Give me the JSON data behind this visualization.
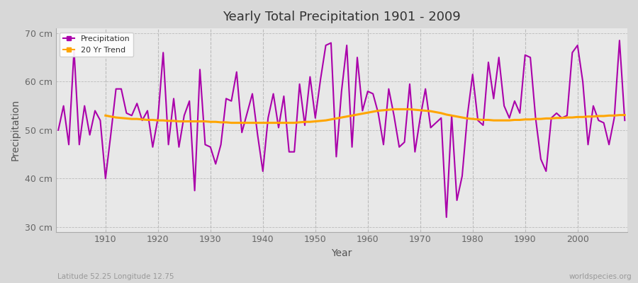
{
  "title": "Yearly Total Precipitation 1901 - 2009",
  "xlabel": "Year",
  "ylabel": "Precipitation",
  "subtitle_left": "Latitude 52.25 Longitude 12.75",
  "subtitle_right": "worldspecies.org",
  "ylim": [
    29,
    71
  ],
  "yticks": [
    30,
    40,
    50,
    60,
    70
  ],
  "ytick_labels": [
    "30 cm",
    "40 cm",
    "50 cm",
    "60 cm",
    "70 cm"
  ],
  "start_year": 1901,
  "end_year": 2009,
  "precip_color": "#AA00AA",
  "trend_color": "#FFA500",
  "figure_bg_color": "#D8D8D8",
  "plot_bg_color": "#E8E8E8",
  "grid_color": "#BBBBBB",
  "precipitation": [
    50.0,
    55.0,
    47.0,
    66.5,
    47.0,
    55.0,
    49.0,
    54.0,
    52.0,
    40.0,
    49.0,
    58.5,
    58.5,
    53.5,
    53.0,
    55.5,
    52.0,
    54.0,
    46.5,
    52.5,
    66.0,
    47.0,
    56.5,
    46.5,
    53.0,
    56.0,
    37.5,
    62.5,
    47.0,
    46.5,
    43.0,
    47.0,
    56.5,
    56.0,
    62.0,
    49.5,
    53.5,
    57.5,
    49.0,
    41.5,
    52.5,
    57.5,
    50.5,
    57.0,
    45.5,
    45.5,
    59.5,
    51.0,
    61.0,
    52.5,
    60.5,
    67.5,
    68.0,
    44.5,
    58.0,
    67.5,
    46.5,
    65.0,
    54.0,
    58.0,
    57.5,
    53.5,
    47.0,
    58.5,
    53.0,
    46.5,
    47.5,
    59.5,
    45.5,
    52.5,
    58.5,
    50.5,
    51.5,
    52.5,
    32.0,
    53.0,
    35.5,
    40.5,
    53.0,
    61.5,
    52.0,
    51.0,
    64.0,
    56.5,
    65.0,
    55.0,
    52.5,
    56.0,
    53.5,
    65.5,
    65.0,
    52.5,
    44.0,
    41.5,
    52.5,
    53.5,
    52.5,
    53.0,
    66.0,
    67.5,
    60.0,
    47.0,
    55.0,
    52.0,
    51.5,
    47.0,
    52.5,
    68.5,
    52.0
  ],
  "trend": [
    null,
    null,
    null,
    null,
    null,
    null,
    null,
    null,
    null,
    53.0,
    52.8,
    52.6,
    52.5,
    52.4,
    52.3,
    52.3,
    52.2,
    52.1,
    52.1,
    52.0,
    52.0,
    51.9,
    51.9,
    51.8,
    51.8,
    51.8,
    51.8,
    51.8,
    51.8,
    51.7,
    51.7,
    51.6,
    51.6,
    51.5,
    51.5,
    51.5,
    51.5,
    51.5,
    51.5,
    51.5,
    51.5,
    51.5,
    51.5,
    51.5,
    51.5,
    51.5,
    51.6,
    51.7,
    51.7,
    51.8,
    51.9,
    52.0,
    52.2,
    52.4,
    52.6,
    52.8,
    53.0,
    53.2,
    53.4,
    53.6,
    53.8,
    54.0,
    54.1,
    54.2,
    54.3,
    54.3,
    54.3,
    54.3,
    54.2,
    54.1,
    54.0,
    53.9,
    53.7,
    53.5,
    53.2,
    53.0,
    52.8,
    52.6,
    52.4,
    52.3,
    52.2,
    52.1,
    52.1,
    52.0,
    52.0,
    52.0,
    52.0,
    52.1,
    52.1,
    52.2,
    52.2,
    52.3,
    52.3,
    52.4,
    52.4,
    52.5,
    52.5,
    52.6,
    52.6,
    52.7,
    52.7,
    52.8,
    52.8,
    52.9,
    52.9,
    53.0,
    53.0,
    53.1,
    53.1
  ]
}
